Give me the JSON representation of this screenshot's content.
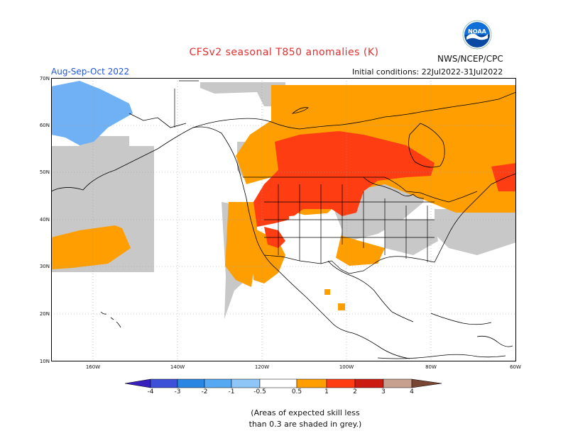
{
  "header": {
    "title": "CFSv2 seasonal T850 anomalies (K)",
    "agency": "NWS/NCEP/CPC",
    "season": "Aug-Sep-Oct 2022",
    "initial_conditions": "Initial conditions: 22Jul2022-31Jul2022"
  },
  "logo": {
    "text": "NOAA",
    "icon": "noaa-logo-icon"
  },
  "axes": {
    "lat_labels": [
      "70N",
      "60N",
      "50N",
      "40N",
      "30N",
      "20N",
      "10N"
    ],
    "lon_labels": [
      "160W",
      "140W",
      "120W",
      "100W",
      "80W",
      "60W"
    ]
  },
  "colorbar": {
    "ticks": [
      "-4",
      "-3",
      "-2",
      "-1",
      "-0.5",
      "0.5",
      "1",
      "2",
      "3",
      "4"
    ],
    "colors": [
      "#3a1fbf",
      "#3d50d8",
      "#2a86e3",
      "#55a9f2",
      "#8ec6f7",
      "#ffffff",
      "#ff9e00",
      "#ff3d13",
      "#cc1b10",
      "#9a0a0a",
      "#c8a090",
      "#7a4634"
    ]
  },
  "legend_note": {
    "line1": "(Areas of expected skill less",
    "line2": "than 0.3 are shaded in grey.)"
  },
  "map_colors": {
    "orange": "#ff9e00",
    "red": "#ff3d13",
    "light_blue": "#6fb1f4",
    "grey": "#c8c8c8",
    "coastline": "#000000"
  }
}
